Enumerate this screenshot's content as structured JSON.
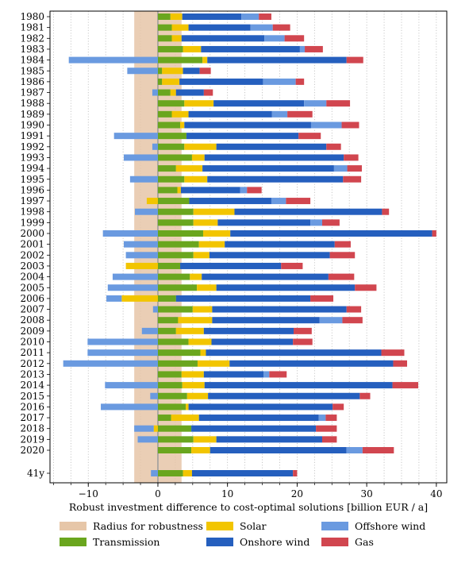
{
  "chart_data": {
    "type": "bar",
    "orientation": "horizontal",
    "stacked": true,
    "xlabel": "Robust investment difference to cost-optimal solutions [billion EUR / a]",
    "xlim": [
      -15.5,
      41.5
    ],
    "xticks": [
      -10,
      0,
      10,
      20,
      30,
      40
    ],
    "grid": "vertical dotted",
    "robustness_radius": 3.4,
    "categories": [
      "1980",
      "1981",
      "1982",
      "1983",
      "1984",
      "1985",
      "1986",
      "1987",
      "1988",
      "1989",
      "1990",
      "1991",
      "1992",
      "1993",
      "1994",
      "1995",
      "1996",
      "1997",
      "1998",
      "1999",
      "2000",
      "2001",
      "2002",
      "2003",
      "2004",
      "2005",
      "2006",
      "2007",
      "2008",
      "2009",
      "2010",
      "2011",
      "2012",
      "2013",
      "2014",
      "2015",
      "2016",
      "2017",
      "2018",
      "2019",
      "2020",
      "41y"
    ],
    "legend": [
      {
        "key": "radius",
        "label": "Radius for robustness",
        "color": "#e6c6a8"
      },
      {
        "key": "transmission",
        "label": "Transmission",
        "color": "#6aa61e"
      },
      {
        "key": "solar",
        "label": "Solar",
        "color": "#f2c500"
      },
      {
        "key": "onshore",
        "label": "Onshore wind",
        "color": "#255fbe"
      },
      {
        "key": "offshore",
        "label": "Offshore wind",
        "color": "#6a9ae0"
      },
      {
        "key": "gas",
        "label": "Gas",
        "color": "#d1464f"
      }
    ],
    "series": [
      {
        "key": "transmission",
        "name": "Transmission",
        "values": [
          1.8,
          2.0,
          2.0,
          3.6,
          6.4,
          0.6,
          0.6,
          1.8,
          3.8,
          2.0,
          3.2,
          4.1,
          3.8,
          4.9,
          2.6,
          3.8,
          2.8,
          4.5,
          5.1,
          5.1,
          6.5,
          5.9,
          5.1,
          3.2,
          4.6,
          5.6,
          2.6,
          5.0,
          2.9,
          2.6,
          4.4,
          6.1,
          5.7,
          3.4,
          3.5,
          4.2,
          4.0,
          1.9,
          4.8,
          5.1,
          4.8,
          3.6
        ]
      },
      {
        "key": "solar",
        "name": "Solar",
        "values": [
          1.7,
          2.4,
          1.4,
          2.6,
          0.7,
          3.0,
          2.5,
          0.8,
          4.2,
          2.4,
          0.6,
          0,
          4.6,
          1.8,
          3.8,
          3.3,
          0.5,
          -1.6,
          5.9,
          3.5,
          3.9,
          3.7,
          2.3,
          -4.6,
          1.7,
          2.8,
          -5.2,
          2.8,
          4.9,
          4.0,
          3.3,
          0.8,
          4.6,
          3.2,
          3.2,
          3.0,
          0.4,
          4.0,
          -0.6,
          3.3,
          2.7,
          1.3
        ]
      },
      {
        "key": "onshore",
        "name": "Onshore wind",
        "values": [
          8.5,
          8.9,
          11.9,
          14.2,
          20.0,
          2.4,
          12.0,
          4.0,
          13.0,
          12.0,
          18.2,
          16.1,
          15.8,
          20.0,
          18.9,
          19.5,
          8.5,
          11.8,
          21.2,
          13.3,
          29.0,
          15.8,
          17.3,
          14.5,
          18.2,
          19.9,
          19.3,
          19.3,
          15.4,
          12.9,
          11.7,
          25.2,
          23.5,
          8.6,
          27.0,
          21.8,
          20.7,
          17.2,
          17.9,
          15.2,
          19.6,
          14.5
        ]
      },
      {
        "key": "offshore",
        "name": "Offshore wind",
        "values": [
          2.5,
          3.2,
          2.9,
          0.7,
          -12.8,
          -4.4,
          4.7,
          -0.8,
          3.2,
          2.2,
          4.4,
          -6.3,
          -0.8,
          -4.9,
          1.9,
          -4.0,
          1.0,
          2.1,
          -3.3,
          1.7,
          -7.9,
          -4.9,
          -4.6,
          0,
          -6.5,
          -7.2,
          -2.2,
          -0.7,
          3.3,
          -2.3,
          -10.1,
          -10.1,
          -13.6,
          0.8,
          -7.6,
          -1.1,
          -8.2,
          1.0,
          -2.8,
          -2.9,
          2.3,
          -1.0
        ]
      },
      {
        "key": "gas",
        "name": "Gas",
        "values": [
          1.8,
          2.5,
          2.8,
          2.6,
          2.4,
          1.6,
          1.2,
          1.3,
          3.4,
          3.6,
          2.5,
          3.2,
          2.1,
          2.1,
          2.1,
          2.6,
          2.1,
          3.5,
          1.0,
          2.5,
          0.6,
          2.3,
          3.6,
          3.1,
          3.7,
          3.1,
          3.3,
          2.1,
          2.9,
          2.6,
          2.8,
          3.3,
          2.0,
          2.5,
          3.7,
          1.5,
          1.6,
          1.6,
          3.0,
          2.1,
          4.5,
          0.6
        ]
      }
    ]
  }
}
